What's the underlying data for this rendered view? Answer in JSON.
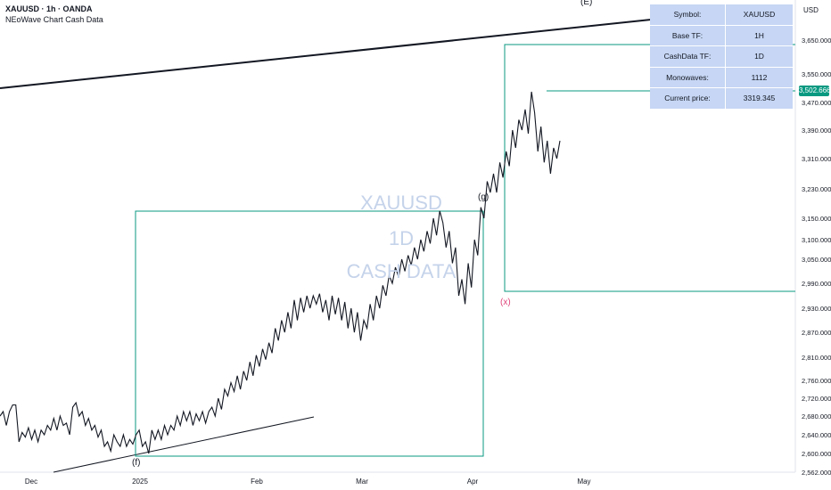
{
  "header": {
    "symbol_line": "XAUUSD · 1h · OANDA",
    "indicator_name": "NEoWave Chart Cash Data"
  },
  "info_table": [
    {
      "key": "Symbol:",
      "value": "XAUUSD"
    },
    {
      "key": "Base TF:",
      "value": "1H"
    },
    {
      "key": "CashData TF:",
      "value": "1D"
    },
    {
      "key": "Monowaves:",
      "value": "1112"
    },
    {
      "key": "Current price:",
      "value": "3319.345"
    }
  ],
  "watermark": {
    "line1": "XAUUSD",
    "line2": "1D",
    "line3": "CASH DATA"
  },
  "price_axis": {
    "title": "USD",
    "highlight_label": "3,502.666",
    "highlight_color": "#089981"
  },
  "wave_labels": {
    "E": "(E)",
    "g": "(g)",
    "f": "(f)",
    "x": "(x)"
  },
  "colors": {
    "box": "#089981",
    "line": "#131722",
    "x_label": "#e0467c",
    "table_bg": "#c6d6f4"
  },
  "chart_data": {
    "type": "line",
    "symbol": "XAUUSD",
    "timeframe": "1h",
    "y_ticks": [
      "3,650.000",
      "3,550.000",
      "3,470.000",
      "3,390.000",
      "3,310.000",
      "3,230.000",
      "3,150.000",
      "3,100.000",
      "3,050.000",
      "2,990.000",
      "2,930.000",
      "2,870.000",
      "2,810.000",
      "2,760.000",
      "2,720.000",
      "2,680.000",
      "2,640.000",
      "2,600.000",
      "2,562.000"
    ],
    "x_ticks": [
      "Dec",
      "2025",
      "Feb",
      "Mar",
      "Apr",
      "May"
    ],
    "series": [
      {
        "values": [
          2680,
          2690,
          2660,
          2690,
          2705,
          2705,
          2625,
          2645,
          2635,
          2655,
          2630,
          2650,
          2625,
          2650,
          2640,
          2660,
          2650,
          2675,
          2650,
          2680,
          2660,
          2665,
          2640,
          2700,
          2710,
          2680,
          2690,
          2660,
          2675,
          2650,
          2660,
          2635,
          2650,
          2615,
          2625,
          2605,
          2640,
          2625,
          2615,
          2640,
          2615,
          2630,
          2620,
          2640,
          2650,
          2615,
          2625,
          2600,
          2650,
          2630,
          2650,
          2630,
          2660,
          2640,
          2660,
          2650,
          2680,
          2660,
          2690,
          2670,
          2690,
          2660,
          2685,
          2670,
          2690,
          2665,
          2690,
          2700,
          2680,
          2720,
          2695,
          2740,
          2725,
          2755,
          2735,
          2770,
          2740,
          2780,
          2760,
          2800,
          2770,
          2815,
          2790,
          2830,
          2805,
          2845,
          2820,
          2880,
          2850,
          2900,
          2870,
          2920,
          2880,
          2950,
          2900,
          2955,
          2920,
          2960,
          2930,
          2960,
          2940,
          2965,
          2920,
          2950,
          2900,
          2960,
          2915,
          2955,
          2900,
          2945,
          2880,
          2930,
          2870,
          2920,
          2850,
          2900,
          2880,
          2940,
          2900,
          2960,
          2930,
          2985,
          2960,
          3010,
          2990,
          3030,
          3005,
          3050,
          3020,
          3060,
          3035,
          3080,
          3050,
          3100,
          3070,
          3120,
          3090,
          3150,
          3110,
          3170,
          3140,
          3080,
          3120,
          3040,
          3080,
          2960,
          3000,
          2940,
          3040,
          2980,
          3100,
          3060,
          3180,
          3150,
          3250,
          3220,
          3270,
          3220,
          3300,
          3260,
          3330,
          3290,
          3390,
          3340,
          3420,
          3390,
          3450,
          3380,
          3500,
          3440,
          3330,
          3400,
          3300,
          3360,
          3270,
          3340,
          3310,
          3360
        ],
        "candidate_ignore": true
      }
    ],
    "annotations": [
      {
        "label": "(E)",
        "type": "wave-label"
      },
      {
        "label": "(g)",
        "type": "wave-label"
      },
      {
        "label": "(f)",
        "type": "wave-label"
      },
      {
        "label": "(x)",
        "type": "wave-label"
      }
    ],
    "grid": false,
    "y_range": [
      2562,
      3700
    ]
  }
}
